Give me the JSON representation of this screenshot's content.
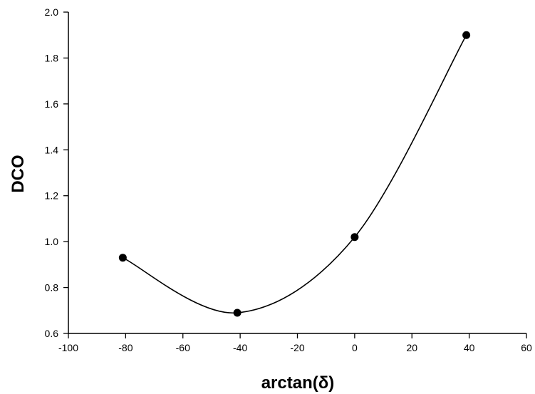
{
  "chart_data": {
    "type": "line",
    "xlabel": "arctan(δ)",
    "ylabel": "DCO",
    "xlim": [
      -100,
      60
    ],
    "ylim": [
      0.6,
      2.0
    ],
    "x_ticks": [
      -100,
      -80,
      -60,
      -40,
      -20,
      0,
      20,
      40,
      60
    ],
    "y_ticks": [
      0.6,
      0.8,
      1.0,
      1.2,
      1.4,
      1.6,
      1.8,
      2.0
    ],
    "x_tick_labels": [
      "-100",
      "-80",
      "-60",
      "-40",
      "-20",
      "0",
      "20",
      "40",
      "60"
    ],
    "y_tick_labels": [
      "0.6",
      "0.8",
      "1.0",
      "1.2",
      "1.4",
      "1.6",
      "1.8",
      "2.0"
    ],
    "grid": false,
    "legend": "none",
    "series": [
      {
        "x": [
          -81,
          -41,
          0,
          39
        ],
        "values": [
          0.93,
          0.69,
          1.02,
          1.9
        ],
        "style": "markers with smooth fitted curve",
        "color": "#000000"
      }
    ]
  }
}
